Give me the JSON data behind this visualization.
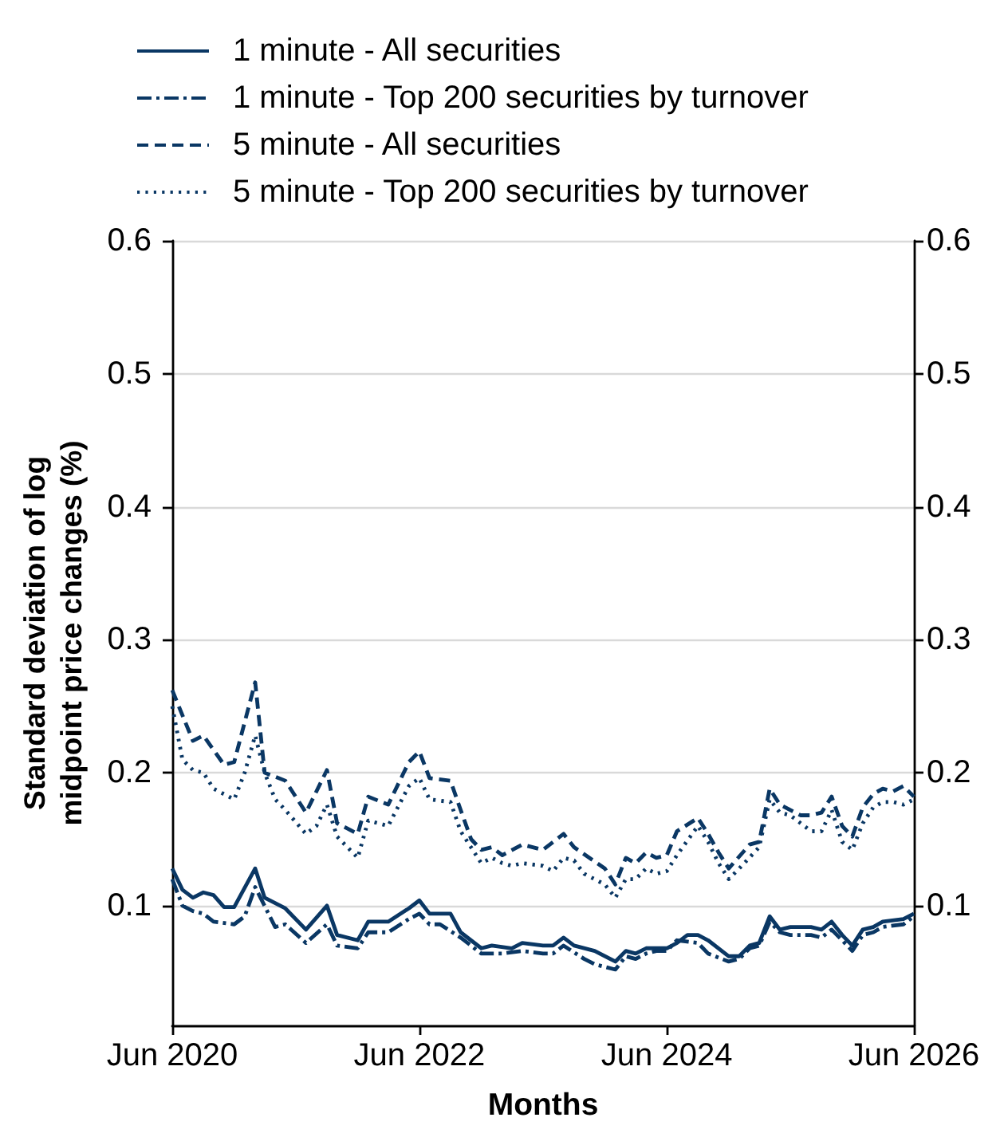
{
  "chart_data": {
    "type": "line",
    "xlabel": "Months",
    "ylabel": "Standard deviation of log midpoint price changes (%)",
    "xlim": [
      "2020-06",
      "2026-06"
    ],
    "xticks": [
      {
        "value": "2020-06",
        "label": "Jun 2020"
      },
      {
        "value": "2022-06",
        "label": "Jun 2022"
      },
      {
        "value": "2024-06",
        "label": "Jun 2024"
      },
      {
        "value": "2026-06",
        "label": "Jun 2026"
      }
    ],
    "ylim": [
      0.01,
      0.6
    ],
    "yticks": [
      0.1,
      0.2,
      0.3,
      0.4,
      0.5,
      0.6
    ],
    "y2lim": [
      0.01,
      0.6
    ],
    "y2ticks": [
      0.1,
      0.2,
      0.3,
      0.4,
      0.5,
      0.6
    ],
    "grid": "y",
    "legend": "top left",
    "marker": "none",
    "series": [
      {
        "name": "1 minute - All securities",
        "color": "#0a3764",
        "line_style": "solid",
        "x": [
          "2020-06",
          "2020-07",
          "2020-08",
          "2020-09",
          "2020-10",
          "2020-11",
          "2020-12",
          "2021-02",
          "2021-03",
          "2021-05",
          "2021-07",
          "2021-09",
          "2021-10",
          "2021-12",
          "2022-01",
          "2022-03",
          "2022-05",
          "2022-06",
          "2022-07",
          "2022-09",
          "2022-10",
          "2022-12",
          "2023-01",
          "2023-03",
          "2023-04",
          "2023-06",
          "2023-07",
          "2023-08",
          "2023-09",
          "2023-11",
          "2024-01",
          "2024-02",
          "2024-03",
          "2024-04",
          "2024-06",
          "2024-07",
          "2024-08",
          "2024-09",
          "2024-10",
          "2024-12",
          "2025-01",
          "2025-02",
          "2025-03",
          "2025-04",
          "2025-05",
          "2025-06",
          "2025-08",
          "2025-09",
          "2025-10",
          "2025-11",
          "2025-12",
          "2026-01",
          "2026-02",
          "2026-03",
          "2026-05",
          "2026-06"
        ],
        "values": [
          0.128,
          0.112,
          0.106,
          0.11,
          0.108,
          0.099,
          0.099,
          0.128,
          0.106,
          0.098,
          0.082,
          0.1,
          0.078,
          0.074,
          0.088,
          0.088,
          0.098,
          0.104,
          0.094,
          0.094,
          0.08,
          0.068,
          0.07,
          0.068,
          0.072,
          0.07,
          0.07,
          0.076,
          0.07,
          0.066,
          0.058,
          0.066,
          0.064,
          0.068,
          0.068,
          0.072,
          0.078,
          0.078,
          0.074,
          0.062,
          0.062,
          0.07,
          0.072,
          0.092,
          0.082,
          0.084,
          0.084,
          0.082,
          0.088,
          0.078,
          0.07,
          0.082,
          0.084,
          0.088,
          0.09,
          0.094
        ]
      },
      {
        "name": "1 minute - Top 200 securities by turnover",
        "color": "#0a3764",
        "line_style": "dashdot",
        "x": [
          "2020-06",
          "2020-07",
          "2020-08",
          "2020-09",
          "2020-10",
          "2020-12",
          "2021-01",
          "2021-02",
          "2021-04",
          "2021-05",
          "2021-07",
          "2021-09",
          "2021-10",
          "2021-12",
          "2022-01",
          "2022-03",
          "2022-05",
          "2022-06",
          "2022-07",
          "2022-08",
          "2022-10",
          "2022-12",
          "2023-01",
          "2023-02",
          "2023-04",
          "2023-06",
          "2023-07",
          "2023-08",
          "2023-10",
          "2023-11",
          "2024-01",
          "2024-02",
          "2024-03",
          "2024-04",
          "2024-05",
          "2024-06",
          "2024-07",
          "2024-09",
          "2024-10",
          "2024-12",
          "2025-01",
          "2025-02",
          "2025-03",
          "2025-04",
          "2025-05",
          "2025-06",
          "2025-08",
          "2025-09",
          "2025-10",
          "2025-11",
          "2025-12",
          "2026-01",
          "2026-02",
          "2026-03",
          "2026-05",
          "2026-06"
        ],
        "values": [
          0.12,
          0.1,
          0.096,
          0.094,
          0.088,
          0.086,
          0.092,
          0.114,
          0.084,
          0.086,
          0.072,
          0.086,
          0.07,
          0.068,
          0.08,
          0.08,
          0.09,
          0.094,
          0.086,
          0.086,
          0.076,
          0.064,
          0.064,
          0.064,
          0.066,
          0.064,
          0.064,
          0.07,
          0.06,
          0.056,
          0.052,
          0.062,
          0.06,
          0.064,
          0.066,
          0.066,
          0.074,
          0.072,
          0.064,
          0.058,
          0.06,
          0.068,
          0.07,
          0.088,
          0.08,
          0.078,
          0.078,
          0.076,
          0.082,
          0.074,
          0.066,
          0.078,
          0.08,
          0.084,
          0.086,
          0.092
        ]
      },
      {
        "name": "5 minute - All securities",
        "color": "#0a3764",
        "line_style": "dashed",
        "x": [
          "2020-06",
          "2020-08",
          "2020-09",
          "2020-11",
          "2020-12",
          "2021-02",
          "2021-03",
          "2021-05",
          "2021-07",
          "2021-09",
          "2021-10",
          "2021-12",
          "2022-01",
          "2022-03",
          "2022-05",
          "2022-06",
          "2022-07",
          "2022-09",
          "2022-10",
          "2022-11",
          "2022-12",
          "2023-01",
          "2023-02",
          "2023-04",
          "2023-06",
          "2023-08",
          "2023-09",
          "2023-12",
          "2024-01",
          "2024-02",
          "2024-03",
          "2024-04",
          "2024-05",
          "2024-06",
          "2024-07",
          "2024-09",
          "2024-10",
          "2024-11",
          "2024-12",
          "2025-02",
          "2025-03",
          "2025-04",
          "2025-05",
          "2025-07",
          "2025-08",
          "2025-09",
          "2025-10",
          "2025-11",
          "2025-12",
          "2026-01",
          "2026-02",
          "2026-03",
          "2026-04",
          "2026-05",
          "2026-06"
        ],
        "values": [
          0.262,
          0.224,
          0.228,
          0.206,
          0.208,
          0.268,
          0.2,
          0.194,
          0.17,
          0.202,
          0.162,
          0.154,
          0.182,
          0.176,
          0.208,
          0.216,
          0.196,
          0.194,
          0.172,
          0.15,
          0.142,
          0.144,
          0.138,
          0.146,
          0.142,
          0.154,
          0.144,
          0.128,
          0.116,
          0.136,
          0.132,
          0.14,
          0.136,
          0.138,
          0.156,
          0.166,
          0.154,
          0.14,
          0.128,
          0.146,
          0.148,
          0.188,
          0.176,
          0.168,
          0.168,
          0.17,
          0.182,
          0.16,
          0.152,
          0.174,
          0.184,
          0.188,
          0.186,
          0.19,
          0.182
        ]
      },
      {
        "name": "5 minute - Top 200 securities by turnover",
        "color": "#0a3764",
        "line_style": "dotted",
        "x": [
          "2020-06",
          "2020-07",
          "2020-08",
          "2020-09",
          "2020-10",
          "2020-12",
          "2021-01",
          "2021-02",
          "2021-03",
          "2021-04",
          "2021-05",
          "2021-07",
          "2021-08",
          "2021-09",
          "2021-10",
          "2021-12",
          "2022-01",
          "2022-03",
          "2022-05",
          "2022-06",
          "2022-07",
          "2022-09",
          "2022-10",
          "2022-12",
          "2023-01",
          "2023-02",
          "2023-03",
          "2023-04",
          "2023-06",
          "2023-07",
          "2023-08",
          "2023-09",
          "2023-10",
          "2023-12",
          "2024-01",
          "2024-02",
          "2024-03",
          "2024-04",
          "2024-05",
          "2024-06",
          "2024-07",
          "2024-09",
          "2024-10",
          "2024-11",
          "2024-12",
          "2025-01",
          "2025-03",
          "2025-04",
          "2025-05",
          "2025-06",
          "2025-08",
          "2025-09",
          "2025-10",
          "2025-11",
          "2025-12",
          "2026-01",
          "2026-02",
          "2026-03",
          "2026-04",
          "2026-05",
          "2026-06"
        ],
        "values": [
          0.25,
          0.21,
          0.202,
          0.2,
          0.188,
          0.18,
          0.2,
          0.228,
          0.2,
          0.18,
          0.172,
          0.154,
          0.16,
          0.176,
          0.152,
          0.136,
          0.164,
          0.16,
          0.19,
          0.196,
          0.18,
          0.178,
          0.156,
          0.132,
          0.136,
          0.132,
          0.13,
          0.132,
          0.13,
          0.126,
          0.136,
          0.134,
          0.124,
          0.116,
          0.106,
          0.12,
          0.12,
          0.128,
          0.124,
          0.126,
          0.138,
          0.16,
          0.148,
          0.132,
          0.12,
          0.128,
          0.144,
          0.18,
          0.17,
          0.168,
          0.156,
          0.156,
          0.172,
          0.148,
          0.142,
          0.162,
          0.174,
          0.178,
          0.178,
          0.176,
          0.18
        ]
      }
    ]
  }
}
